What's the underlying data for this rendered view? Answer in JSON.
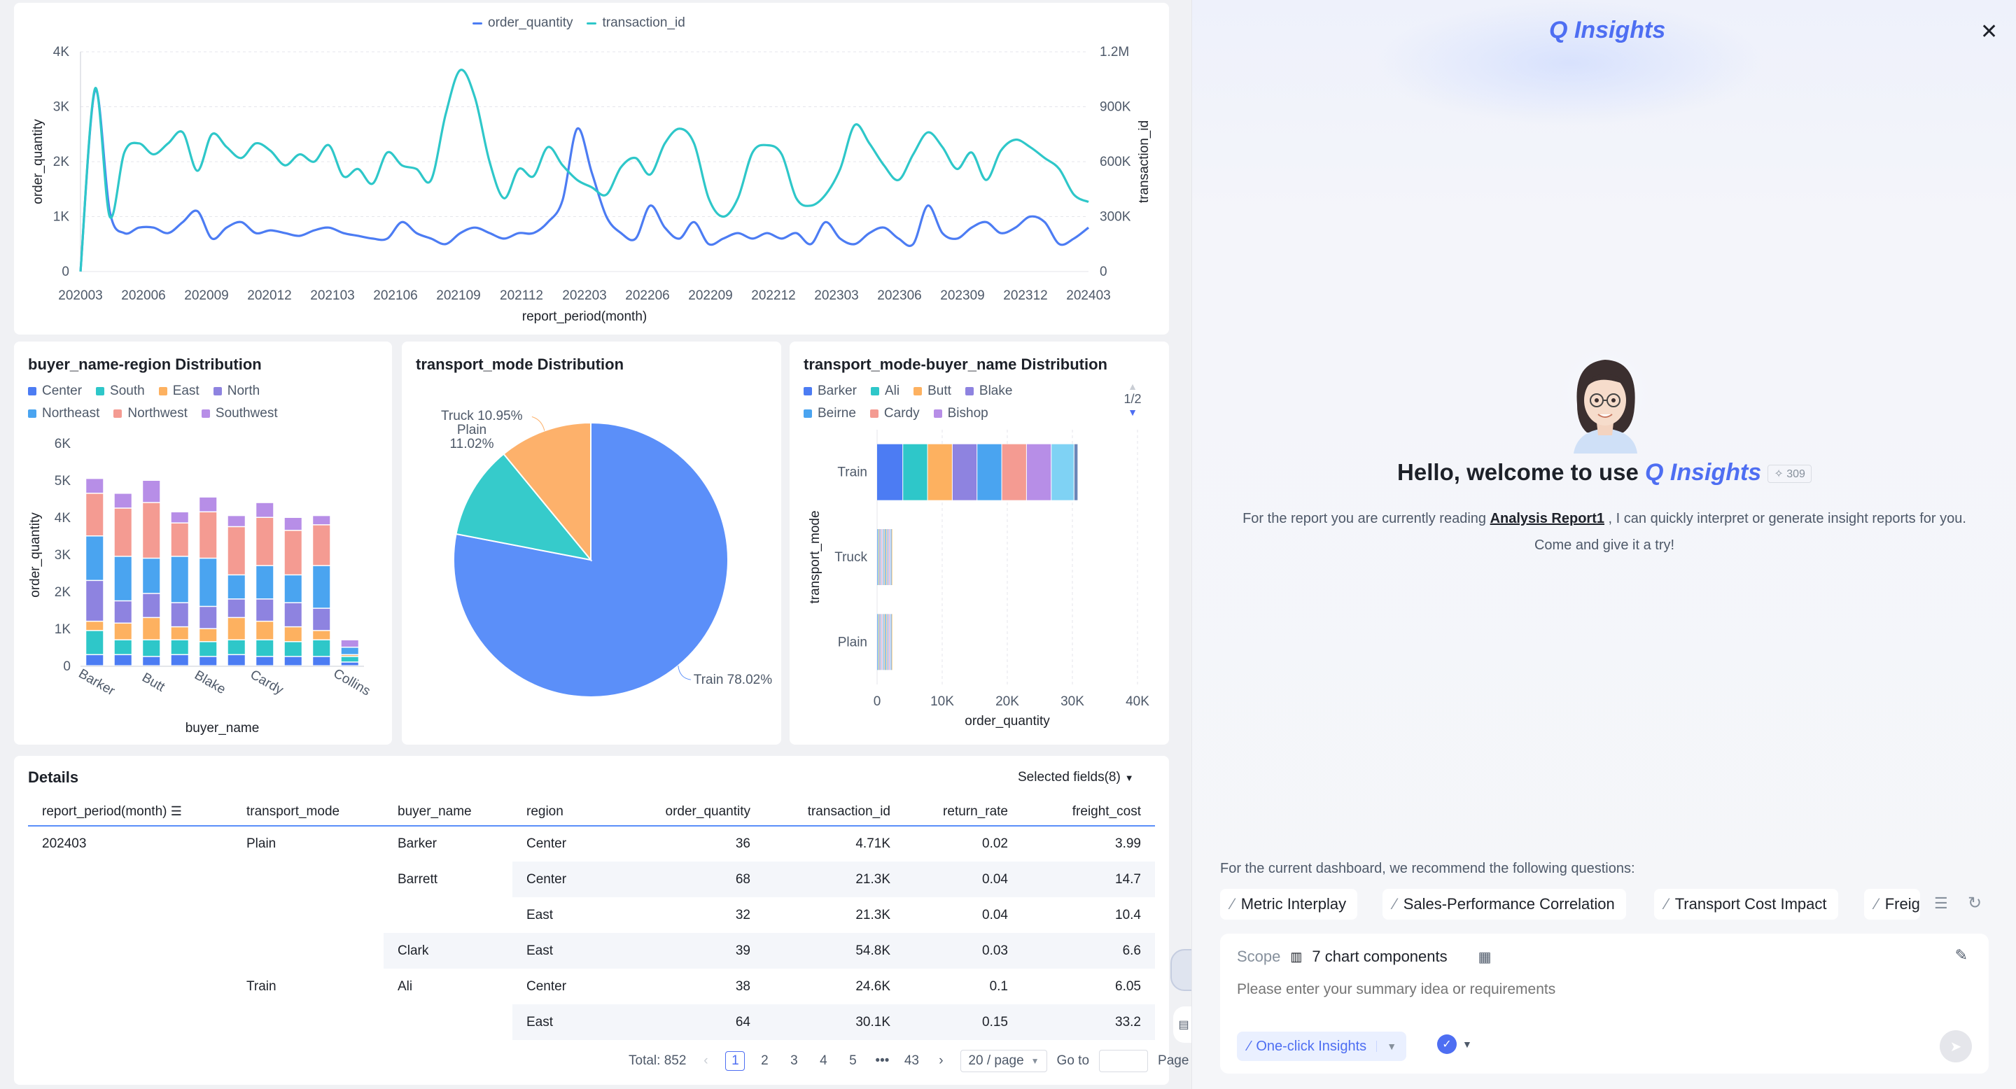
{
  "line_chart": {
    "legend": [
      "order_quantity",
      "transaction_id"
    ],
    "y_left_label": "order_quantity",
    "y_right_label": "transaction_id",
    "x_label": "report_period(month)",
    "y_left_ticks": [
      "4K",
      "3K",
      "2K",
      "1K",
      "0"
    ],
    "y_right_ticks": [
      "1.2M",
      "900K",
      "600K",
      "300K",
      "0"
    ],
    "x_ticks": [
      "202003",
      "202006",
      "202009",
      "202012",
      "202103",
      "202106",
      "202109",
      "202112",
      "202203",
      "202206",
      "202209",
      "202212",
      "202303",
      "202306",
      "202309",
      "202312",
      "202403"
    ]
  },
  "chart_data": [
    {
      "type": "line",
      "series": [
        {
          "name": "order_quantity",
          "color": "#4c7cf3",
          "values": [
            0,
            3300,
            1100,
            700,
            800,
            800,
            700,
            900,
            1100,
            600,
            800,
            900,
            700,
            750,
            700,
            650,
            750,
            800,
            700,
            650,
            600,
            600,
            900,
            700,
            600,
            500,
            700,
            800,
            700,
            600,
            700,
            700,
            900,
            1300,
            2600,
            1800,
            1000,
            700,
            600,
            1200,
            800,
            600,
            900,
            500,
            600,
            700,
            600,
            700,
            600,
            700,
            500,
            900,
            600,
            500,
            700,
            800,
            600,
            500,
            1200,
            700,
            600,
            800,
            900,
            700,
            800,
            1000,
            900,
            500,
            600,
            800
          ]
        },
        {
          "name": "transaction_id",
          "color": "#2ec7c9",
          "values": [
            0,
            1000000,
            300000,
            650000,
            700000,
            640000,
            700000,
            760000,
            550000,
            750000,
            680000,
            620000,
            700000,
            660000,
            580000,
            640000,
            600000,
            690000,
            520000,
            560000,
            480000,
            650000,
            580000,
            560000,
            500000,
            860000,
            1100000,
            950000,
            600000,
            400000,
            560000,
            520000,
            680000,
            580000,
            500000,
            460000,
            420000,
            570000,
            620000,
            530000,
            700000,
            780000,
            700000,
            400000,
            300000,
            400000,
            650000,
            690000,
            640000,
            400000,
            360000,
            420000,
            560000,
            800000,
            700000,
            580000,
            500000,
            640000,
            760000,
            680000,
            560000,
            650000,
            500000,
            660000,
            720000,
            680000,
            620000,
            560000,
            420000,
            380000
          ]
        }
      ],
      "x_range": [
        "202003",
        "202403"
      ],
      "ylim_left": [
        0,
        4000
      ],
      "ylim_right": [
        0,
        1200000
      ]
    },
    {
      "type": "bar",
      "title": "buyer_name-region Distribution",
      "xlabel": "buyer_name",
      "ylabel": "order_quantity",
      "y_ticks": [
        "6K",
        "5K",
        "4K",
        "3K",
        "2K",
        "1K",
        "0"
      ],
      "ylim": [
        0,
        6000
      ],
      "x_tick_labels": [
        "Barker",
        "Butt",
        "Blake",
        "Cardy",
        "Collins"
      ],
      "legend": [
        {
          "name": "Center",
          "color": "#4c7cf3"
        },
        {
          "name": "South",
          "color": "#2ec7c9"
        },
        {
          "name": "East",
          "color": "#fdb160"
        },
        {
          "name": "North",
          "color": "#8e83e0"
        },
        {
          "name": "Northeast",
          "color": "#4aa4f0"
        },
        {
          "name": "Northwest",
          "color": "#f49b92"
        },
        {
          "name": "Southwest",
          "color": "#b78ee7"
        }
      ],
      "stacks": [
        [
          300,
          650,
          250,
          1100,
          1200,
          1150,
          400
        ],
        [
          300,
          400,
          450,
          600,
          1200,
          1300,
          400
        ],
        [
          250,
          450,
          600,
          650,
          950,
          1500,
          600
        ],
        [
          300,
          400,
          350,
          650,
          1250,
          900,
          300
        ],
        [
          250,
          400,
          350,
          600,
          1300,
          1250,
          400
        ],
        [
          300,
          400,
          600,
          500,
          650,
          1300,
          300
        ],
        [
          250,
          450,
          500,
          600,
          900,
          1300,
          400
        ],
        [
          250,
          400,
          400,
          650,
          750,
          1200,
          350
        ],
        [
          250,
          450,
          250,
          600,
          1150,
          1100,
          250
        ],
        [
          100,
          150,
          50,
          0,
          200,
          0,
          200
        ]
      ]
    },
    {
      "type": "pie",
      "title": "transport_mode Distribution",
      "slices": [
        {
          "name": "Train",
          "value": 78.02,
          "label": "Train 78.02%",
          "color": "#5b8ff9"
        },
        {
          "name": "Plain",
          "value": 11.02,
          "label": "Plain\n11.02%",
          "color": "#36cbcb"
        },
        {
          "name": "Truck",
          "value": 10.95,
          "label": "Truck 10.95%",
          "color": "#fdb16b"
        }
      ]
    },
    {
      "type": "bar",
      "orientation": "horizontal",
      "title": "transport_mode-buyer_name Distribution",
      "xlabel": "order_quantity",
      "ylabel": "transport_mode",
      "categories": [
        "Train",
        "Truck",
        "Plain"
      ],
      "x_ticks": [
        "0",
        "10K",
        "20K",
        "30K",
        "40K"
      ],
      "xlim": [
        0,
        40000
      ],
      "legend_page": "1/2",
      "legend": [
        {
          "name": "Barker",
          "color": "#4c7cf3"
        },
        {
          "name": "Ali",
          "color": "#2ec7c9"
        },
        {
          "name": "Butt",
          "color": "#fdb160"
        },
        {
          "name": "Blake",
          "color": "#8e83e0"
        },
        {
          "name": "Beirne",
          "color": "#4aa4f0"
        },
        {
          "name": "Cardy",
          "color": "#f49b92"
        },
        {
          "name": "Bishop",
          "color": "#b78ee7"
        }
      ],
      "stacks": {
        "Train": [
          4000,
          3800,
          3800,
          3800,
          3800,
          3800,
          3800,
          3500,
          600
        ],
        "Truck": [
          120,
          120,
          120,
          120,
          120,
          120,
          120,
          120,
          120,
          120,
          120,
          120,
          120,
          120,
          120,
          120,
          120,
          120,
          120,
          120
        ],
        "Plain": [
          120,
          120,
          120,
          120,
          120,
          120,
          120,
          120,
          120,
          120,
          120,
          120,
          120,
          120,
          120,
          120,
          120,
          120,
          120,
          120
        ]
      },
      "stack_colors": [
        "#4c7cf3",
        "#2ec7c9",
        "#fdb160",
        "#8e83e0",
        "#4aa4f0",
        "#f49b92",
        "#b78ee7",
        "#7fd2f4",
        "#6a86b8",
        "#f6c96a"
      ]
    }
  ],
  "details": {
    "title": "Details",
    "selected_fields": "Selected fields(8)",
    "columns": [
      "report_period(month)",
      "transport_mode",
      "buyer_name",
      "region",
      "order_quantity",
      "transaction_id",
      "return_rate",
      "freight_cost"
    ],
    "rows": [
      [
        "202403",
        "Plain",
        "Barker",
        "Center",
        "36",
        "4.71K",
        "0.02",
        "3.99"
      ],
      [
        "",
        "",
        "Barrett",
        "Center",
        "68",
        "21.3K",
        "0.04",
        "14.7"
      ],
      [
        "",
        "",
        "",
        "East",
        "32",
        "21.3K",
        "0.04",
        "10.4"
      ],
      [
        "",
        "",
        "Clark",
        "East",
        "39",
        "54.8K",
        "0.03",
        "6.6"
      ],
      [
        "",
        "Train",
        "Ali",
        "Center",
        "38",
        "24.6K",
        "0.1",
        "6.05"
      ],
      [
        "",
        "",
        "",
        "East",
        "64",
        "30.1K",
        "0.15",
        "33.2"
      ]
    ],
    "pagination": {
      "total": "Total: 852",
      "pages": [
        "1",
        "2",
        "3",
        "4",
        "5",
        "•••",
        "43"
      ],
      "page_size": "20 / page",
      "goto": "Go to",
      "page_suffix": "Page"
    }
  },
  "insights": {
    "brand": "Q Insights",
    "greeting": "Hello, welcome to use",
    "badge": "309",
    "desc_prefix": "For the report you are currently reading",
    "report_link": "Analysis Report1",
    "desc_suffix": ", I can quickly interpret or generate insight reports for you.",
    "desc_line2": "Come and give it a try!",
    "recommend_title": "For the current dashboard, we recommend the following questions:",
    "chips": [
      "Metric Interplay",
      "Sales-Performance Correlation",
      "Transport Cost Impact",
      "Freig"
    ],
    "scope_label": "Scope",
    "scope_value": "7 chart components",
    "placeholder": "Please enter your summary idea or requirements",
    "one_click": "One-click Insights",
    "accent": "#4e6ef2"
  }
}
